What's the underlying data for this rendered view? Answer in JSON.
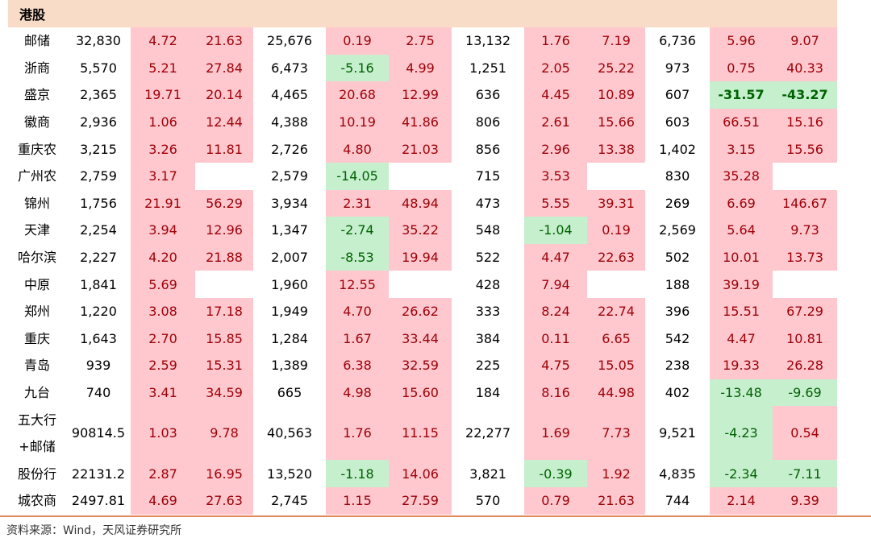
{
  "section_label": "港股",
  "rows": [
    {
      "name": "邮储",
      "cells": [
        "32,830",
        "4.72",
        "21.63",
        "25,676",
        "0.19",
        "2.75",
        "13,132",
        "1.76",
        "7.19",
        "6,736",
        "5.96",
        "9.07"
      ]
    },
    {
      "name": "浙商",
      "cells": [
        "5,570",
        "5.21",
        "27.84",
        "6,473",
        "-5.16",
        "4.99",
        "1,251",
        "2.05",
        "25.22",
        "973",
        "0.75",
        "40.33"
      ]
    },
    {
      "name": "盛京",
      "cells": [
        "2,365",
        "19.71",
        "20.14",
        "4,465",
        "20.68",
        "12.99",
        "636",
        "4.45",
        "10.89",
        "607",
        "-31.57",
        "-43.27"
      ]
    },
    {
      "name": "徽商",
      "cells": [
        "2,936",
        "1.06",
        "12.44",
        "4,388",
        "10.19",
        "41.86",
        "806",
        "2.61",
        "15.66",
        "603",
        "66.51",
        "15.16"
      ]
    },
    {
      "name": "重庆农",
      "cells": [
        "3,215",
        "3.26",
        "11.81",
        "2,726",
        "4.80",
        "21.03",
        "856",
        "2.96",
        "13.38",
        "1,402",
        "3.15",
        "15.56"
      ]
    },
    {
      "name": "广州农",
      "cells": [
        "2,759",
        "3.17",
        "",
        "2,579",
        "-14.05",
        "",
        "715",
        "3.53",
        "",
        "830",
        "35.28",
        ""
      ]
    },
    {
      "name": "锦州",
      "cells": [
        "1,756",
        "21.91",
        "56.29",
        "3,934",
        "2.31",
        "48.94",
        "473",
        "5.55",
        "39.31",
        "269",
        "6.69",
        "146.67"
      ]
    },
    {
      "name": "天津",
      "cells": [
        "2,254",
        "3.94",
        "12.96",
        "1,347",
        "-2.74",
        "35.22",
        "548",
        "-1.04",
        "0.19",
        "2,569",
        "5.64",
        "9.73"
      ]
    },
    {
      "name": "哈尔滨",
      "cells": [
        "2,227",
        "4.20",
        "21.88",
        "2,007",
        "-8.53",
        "19.94",
        "522",
        "4.47",
        "22.63",
        "502",
        "10.01",
        "13.73"
      ]
    },
    {
      "name": "中原",
      "cells": [
        "1,841",
        "5.69",
        "",
        "1,960",
        "12.55",
        "",
        "428",
        "7.94",
        "",
        "188",
        "39.19",
        ""
      ]
    },
    {
      "name": "郑州",
      "cells": [
        "1,220",
        "3.08",
        "17.18",
        "1,949",
        "4.70",
        "26.62",
        "333",
        "8.24",
        "22.74",
        "396",
        "15.51",
        "67.29"
      ]
    },
    {
      "name": "重庆",
      "cells": [
        "1,643",
        "2.70",
        "15.85",
        "1,284",
        "1.67",
        "33.44",
        "384",
        "0.11",
        "6.65",
        "542",
        "4.47",
        "10.81"
      ]
    },
    {
      "name": "青岛",
      "cells": [
        "939",
        "2.59",
        "15.31",
        "1,389",
        "6.38",
        "32.59",
        "225",
        "4.75",
        "15.05",
        "238",
        "19.33",
        "26.28"
      ]
    },
    {
      "name": "九台",
      "cells": [
        "740",
        "3.41",
        "34.59",
        "665",
        "4.98",
        "15.60",
        "184",
        "8.16",
        "44.98",
        "402",
        "-13.48",
        "-9.69"
      ]
    },
    {
      "name": "五大行+邮储",
      "name_line1": "五大行",
      "name_line2": "+邮储",
      "cells": [
        "90814.5",
        "1.03",
        "9.78",
        "40,563",
        "1.76",
        "11.15",
        "22,277",
        "1.69",
        "7.73",
        "9,521",
        "-4.23",
        "0.54"
      ]
    },
    {
      "name": "股份行",
      "cells": [
        "22131.2",
        "2.87",
        "16.95",
        "13,520",
        "-1.18",
        "14.06",
        "3,821",
        "-0.39",
        "1.92",
        "4,835",
        "-2.34",
        "-7.11"
      ]
    },
    {
      "name": "城农商",
      "cells": [
        "2497.81",
        "4.69",
        "27.63",
        "2,745",
        "1.15",
        "27.59",
        "570",
        "0.79",
        "21.63",
        "744",
        "2.14",
        "9.39"
      ]
    }
  ],
  "source": "资料来源：Wind，天风证券研究所"
}
